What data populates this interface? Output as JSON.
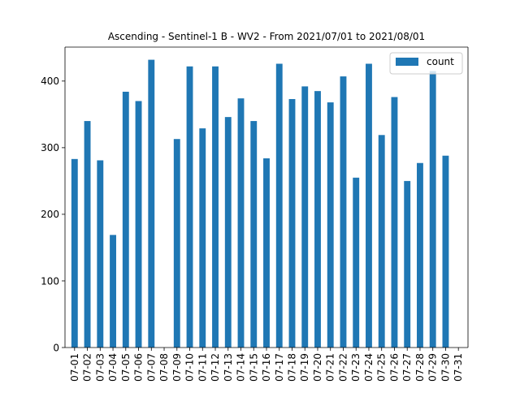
{
  "chart_data": {
    "type": "bar",
    "title": "Ascending - Sentinel-1 B - WV2 - From 2021/07/01 to 2021/08/01",
    "xlabel": "",
    "ylabel": "",
    "categories": [
      "07-01",
      "07-02",
      "07-03",
      "07-04",
      "07-05",
      "07-06",
      "07-07",
      "07-08",
      "07-09",
      "07-10",
      "07-11",
      "07-12",
      "07-13",
      "07-14",
      "07-15",
      "07-16",
      "07-17",
      "07-18",
      "07-19",
      "07-20",
      "07-21",
      "07-22",
      "07-23",
      "07-24",
      "07-25",
      "07-26",
      "07-27",
      "07-28",
      "07-29",
      "07-30",
      "07-31"
    ],
    "series": [
      {
        "name": "count",
        "color": "#1f77b4",
        "values": [
          283,
          340,
          281,
          169,
          384,
          370,
          432,
          0,
          313,
          422,
          329,
          422,
          346,
          374,
          340,
          284,
          426,
          373,
          392,
          385,
          368,
          407,
          255,
          426,
          319,
          376,
          250,
          277,
          415,
          288,
          0
        ]
      }
    ],
    "ylim": [
      0,
      451
    ],
    "yticks": [
      0,
      100,
      200,
      300,
      400
    ],
    "grid": false,
    "legend": "top-right"
  }
}
